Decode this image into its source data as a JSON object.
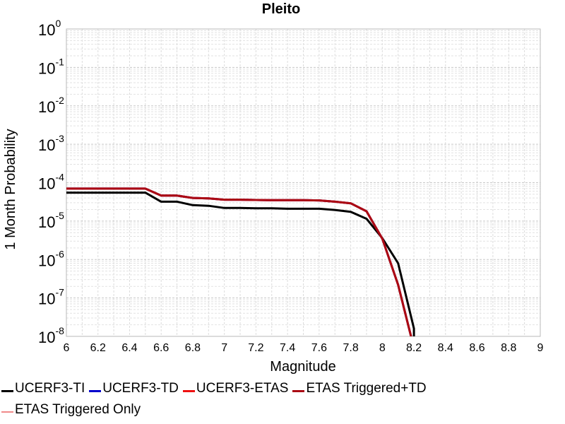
{
  "chart_data": {
    "type": "line",
    "title": "Pleito",
    "xlabel": "Magnitude",
    "ylabel": "1 Month Probability",
    "xlim": [
      6,
      9
    ],
    "ylim": [
      1e-08,
      1
    ],
    "yscale": "log",
    "grid": true,
    "legend_position": "bottom",
    "x_ticks": [
      "6",
      "6.2",
      "6.4",
      "6.6",
      "6.8",
      "7",
      "7.2",
      "7.4",
      "7.6",
      "7.8",
      "8",
      "8.2",
      "8.4",
      "8.6",
      "8.8",
      "9"
    ],
    "y_ticks": [
      {
        "base": "10",
        "exp": "0",
        "value": 1
      },
      {
        "base": "10",
        "exp": "-1",
        "value": 0.1
      },
      {
        "base": "10",
        "exp": "-2",
        "value": 0.01
      },
      {
        "base": "10",
        "exp": "-3",
        "value": 0.001
      },
      {
        "base": "10",
        "exp": "-4",
        "value": 0.0001
      },
      {
        "base": "10",
        "exp": "-5",
        "value": 1e-05
      },
      {
        "base": "10",
        "exp": "-6",
        "value": 1e-06
      },
      {
        "base": "10",
        "exp": "-7",
        "value": 1e-07
      },
      {
        "base": "10",
        "exp": "-8",
        "value": 1e-08
      }
    ],
    "series": [
      {
        "name": "UCERF3-TI",
        "color": "#000000",
        "x": [
          6.0,
          6.1,
          6.2,
          6.3,
          6.4,
          6.5,
          6.6,
          6.7,
          6.8,
          6.9,
          7.0,
          7.1,
          7.2,
          7.3,
          7.4,
          7.5,
          7.6,
          7.7,
          7.8,
          7.9,
          8.0,
          8.1,
          8.2,
          8.2
        ],
        "y": [
          5.5e-05,
          5.5e-05,
          5.5e-05,
          5.5e-05,
          5.5e-05,
          5.5e-05,
          3.2e-05,
          3.2e-05,
          2.6e-05,
          2.5e-05,
          2.2e-05,
          2.2e-05,
          2.15e-05,
          2.15e-05,
          2.1e-05,
          2.1e-05,
          2.1e-05,
          1.95e-05,
          1.75e-05,
          1.15e-05,
          3.6e-06,
          8e-07,
          1.6e-08,
          5e-09
        ]
      },
      {
        "name": "UCERF3-TD",
        "color": "#0000cc",
        "x": [
          6.0,
          6.1,
          6.2,
          6.3,
          6.4,
          6.5,
          6.6,
          6.7,
          6.8,
          6.9,
          7.0,
          7.1,
          7.2,
          7.3,
          7.4,
          7.5,
          7.6,
          7.7,
          7.8,
          7.9,
          8.0,
          8.1,
          8.2
        ],
        "y": [
          7e-05,
          7e-05,
          7e-05,
          7e-05,
          7e-05,
          7e-05,
          4.6e-05,
          4.6e-05,
          4e-05,
          3.9e-05,
          3.6e-05,
          3.6e-05,
          3.55e-05,
          3.5e-05,
          3.5e-05,
          3.5e-05,
          3.45e-05,
          3.2e-05,
          2.9e-05,
          1.8e-05,
          3.5e-06,
          2.2e-07,
          5e-09
        ]
      },
      {
        "name": "UCERF3-ETAS",
        "color": "#ee1111",
        "x": [
          6.0,
          6.1,
          6.2,
          6.3,
          6.4,
          6.5,
          6.6,
          6.7,
          6.8,
          6.9,
          7.0,
          7.1,
          7.2,
          7.3,
          7.4,
          7.5,
          7.6,
          7.7,
          7.8,
          7.9,
          8.0,
          8.1,
          8.2
        ],
        "y": [
          7e-05,
          7e-05,
          7e-05,
          7e-05,
          7e-05,
          7e-05,
          4.6e-05,
          4.6e-05,
          4e-05,
          3.9e-05,
          3.6e-05,
          3.6e-05,
          3.55e-05,
          3.5e-05,
          3.5e-05,
          3.5e-05,
          3.45e-05,
          3.2e-05,
          2.9e-05,
          1.8e-05,
          3.5e-06,
          2.2e-07,
          5e-09
        ]
      },
      {
        "name": "ETAS Triggered+TD",
        "color": "#aa0a14",
        "x": [
          6.0,
          6.1,
          6.2,
          6.3,
          6.4,
          6.5,
          6.6,
          6.7,
          6.8,
          6.9,
          7.0,
          7.1,
          7.2,
          7.3,
          7.4,
          7.5,
          7.6,
          7.7,
          7.8,
          7.9,
          8.0,
          8.1,
          8.2
        ],
        "y": [
          7e-05,
          7e-05,
          7e-05,
          7e-05,
          7e-05,
          7e-05,
          4.6e-05,
          4.6e-05,
          4e-05,
          3.9e-05,
          3.6e-05,
          3.6e-05,
          3.55e-05,
          3.5e-05,
          3.5e-05,
          3.5e-05,
          3.45e-05,
          3.2e-05,
          2.9e-05,
          1.8e-05,
          3.5e-06,
          2.2e-07,
          5e-09
        ]
      },
      {
        "name": "ETAS Triggered Only",
        "color": "#f08a8a",
        "x": [],
        "y": []
      }
    ]
  }
}
